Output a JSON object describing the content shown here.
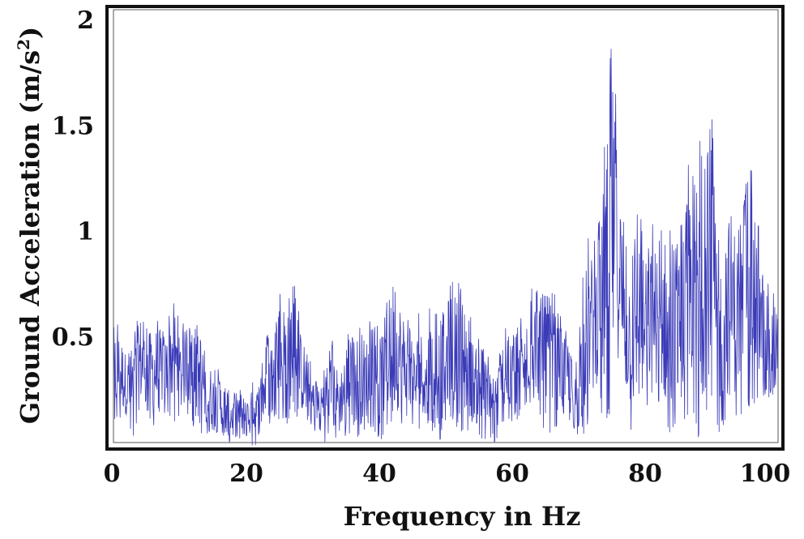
{
  "chart_data": {
    "type": "line",
    "title": "",
    "xlabel": "Frequency in Hz",
    "ylabel": "Ground Acceleration (m/s",
    "ylabel_superscript": "2",
    "ylabel_close": ")",
    "xlim": [
      0,
      100
    ],
    "ylim": [
      0,
      2.05
    ],
    "x_ticks": [
      {
        "value": 0,
        "label": "0"
      },
      {
        "value": 20,
        "label": "20"
      },
      {
        "value": 40,
        "label": "40"
      },
      {
        "value": 60,
        "label": "60"
      },
      {
        "value": 80,
        "label": "80"
      },
      {
        "value": 100,
        "label": "100"
      }
    ],
    "y_ticks": [
      {
        "value": 0.5,
        "label": "0.5"
      },
      {
        "value": 1,
        "label": "1"
      },
      {
        "value": 1.5,
        "label": "1.5"
      },
      {
        "value": 2,
        "label": "2"
      }
    ],
    "grid": false,
    "legend": "none",
    "line_color": "#3b3bb8",
    "series": [
      {
        "name": "",
        "x": [
          0,
          1,
          2,
          3,
          4,
          5,
          6,
          7,
          8,
          9,
          10,
          11,
          12,
          13,
          14,
          15,
          16,
          17,
          18,
          19,
          20,
          21,
          22,
          23,
          24,
          25,
          26,
          27,
          28,
          29,
          30,
          31,
          32,
          33,
          34,
          35,
          36,
          37,
          38,
          39,
          40,
          41,
          42,
          43,
          44,
          45,
          46,
          47,
          48,
          49,
          50,
          51,
          52,
          53,
          54,
          55,
          56,
          57,
          58,
          59,
          60,
          61,
          62,
          63,
          64,
          65,
          66,
          67,
          68,
          69,
          70,
          71,
          72,
          73,
          74,
          75,
          76,
          77,
          78,
          79,
          80,
          81,
          82,
          83,
          84,
          85,
          86,
          87,
          88,
          89,
          90,
          91,
          92,
          93,
          94,
          95,
          96,
          97,
          98,
          99,
          100
        ],
        "envelope_max": [
          0.62,
          0.58,
          0.45,
          0.5,
          0.68,
          0.55,
          0.62,
          0.6,
          0.55,
          0.75,
          0.55,
          0.6,
          0.5,
          0.63,
          0.45,
          0.38,
          0.35,
          0.3,
          0.25,
          0.3,
          0.22,
          0.3,
          0.3,
          0.55,
          0.45,
          0.7,
          0.78,
          0.8,
          0.6,
          0.5,
          0.32,
          0.35,
          0.38,
          0.5,
          0.35,
          0.55,
          0.5,
          0.62,
          0.55,
          0.6,
          0.55,
          0.7,
          0.75,
          0.78,
          0.65,
          0.5,
          0.62,
          0.55,
          0.7,
          0.65,
          0.75,
          0.82,
          0.75,
          0.82,
          0.55,
          0.5,
          0.45,
          0.35,
          0.45,
          0.55,
          0.5,
          0.62,
          0.55,
          0.75,
          0.8,
          0.72,
          0.75,
          0.62,
          0.55,
          0.45,
          0.5,
          0.95,
          1.0,
          1.05,
          1.5,
          1.98,
          1.45,
          1.0,
          0.9,
          1.2,
          0.9,
          1.05,
          1.0,
          1.1,
          1.0,
          0.95,
          1.25,
          1.45,
          1.48,
          1.3,
          1.6,
          1.0,
          1.2,
          1.25,
          1.05,
          1.22,
          1.3,
          1.05,
          0.85,
          0.75,
          0.68
        ],
        "envelope_min": [
          0.05,
          0.1,
          0.08,
          0.0,
          0.1,
          0.15,
          0.05,
          0.1,
          0.15,
          0.1,
          0.05,
          0.15,
          0.05,
          0.0,
          0.05,
          0.0,
          0.0,
          0.0,
          -0.02,
          0.0,
          0.0,
          -0.02,
          0.0,
          0.05,
          0.05,
          0.1,
          0.08,
          0.15,
          0.1,
          0.05,
          0.05,
          0.0,
          0.0,
          -0.02,
          0.05,
          0.0,
          0.05,
          0.0,
          0.05,
          0.08,
          0.0,
          0.05,
          0.1,
          0.05,
          0.05,
          0.0,
          0.05,
          0.1,
          0.05,
          0.0,
          0.05,
          0.1,
          0.05,
          0.0,
          0.05,
          0.0,
          0.0,
          -0.02,
          0.0,
          0.05,
          0.08,
          0.1,
          0.15,
          0.2,
          0.1,
          0.05,
          0.0,
          0.1,
          0.0,
          0.05,
          0.0,
          0.05,
          0.1,
          0.2,
          0.05,
          0.15,
          0.25,
          0.1,
          0.05,
          0.0,
          0.1,
          0.2,
          0.15,
          0.05,
          0.0,
          0.1,
          0.05,
          0.15,
          0.0,
          0.1,
          0.2,
          0.0,
          0.1,
          0.05,
          0.15,
          0.1,
          0.2,
          0.15,
          0.2,
          0.2,
          0.3
        ]
      }
    ]
  }
}
